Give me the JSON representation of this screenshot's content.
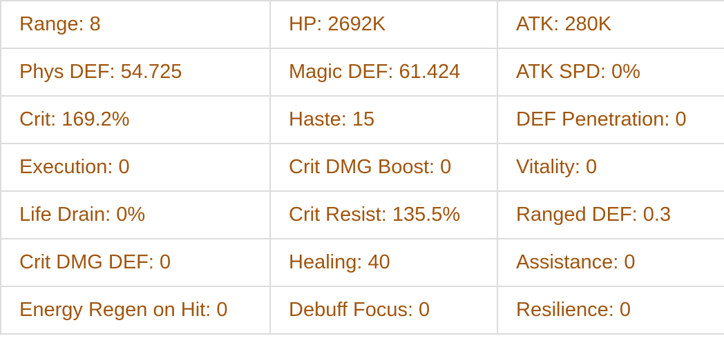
{
  "text_color": "#a0550f",
  "rows": [
    [
      "Range: 8",
      "HP: 2692K",
      "ATK: 280K"
    ],
    [
      "Phys DEF: 54.725",
      "Magic DEF: 61.424",
      "ATK SPD: 0%"
    ],
    [
      "Crit: 169.2%",
      "Haste: 15",
      "DEF Penetration: 0"
    ],
    [
      "Execution: 0",
      "Crit DMG Boost: 0",
      "Vitality: 0"
    ],
    [
      "Life Drain: 0%",
      "Crit Resist: 135.5%",
      "Ranged DEF: 0.3"
    ],
    [
      "Crit DMG DEF: 0",
      "Healing: 40",
      "Assistance: 0"
    ],
    [
      "Energy Regen on Hit: 0",
      "Debuff Focus: 0",
      "Resilience: 0"
    ]
  ]
}
